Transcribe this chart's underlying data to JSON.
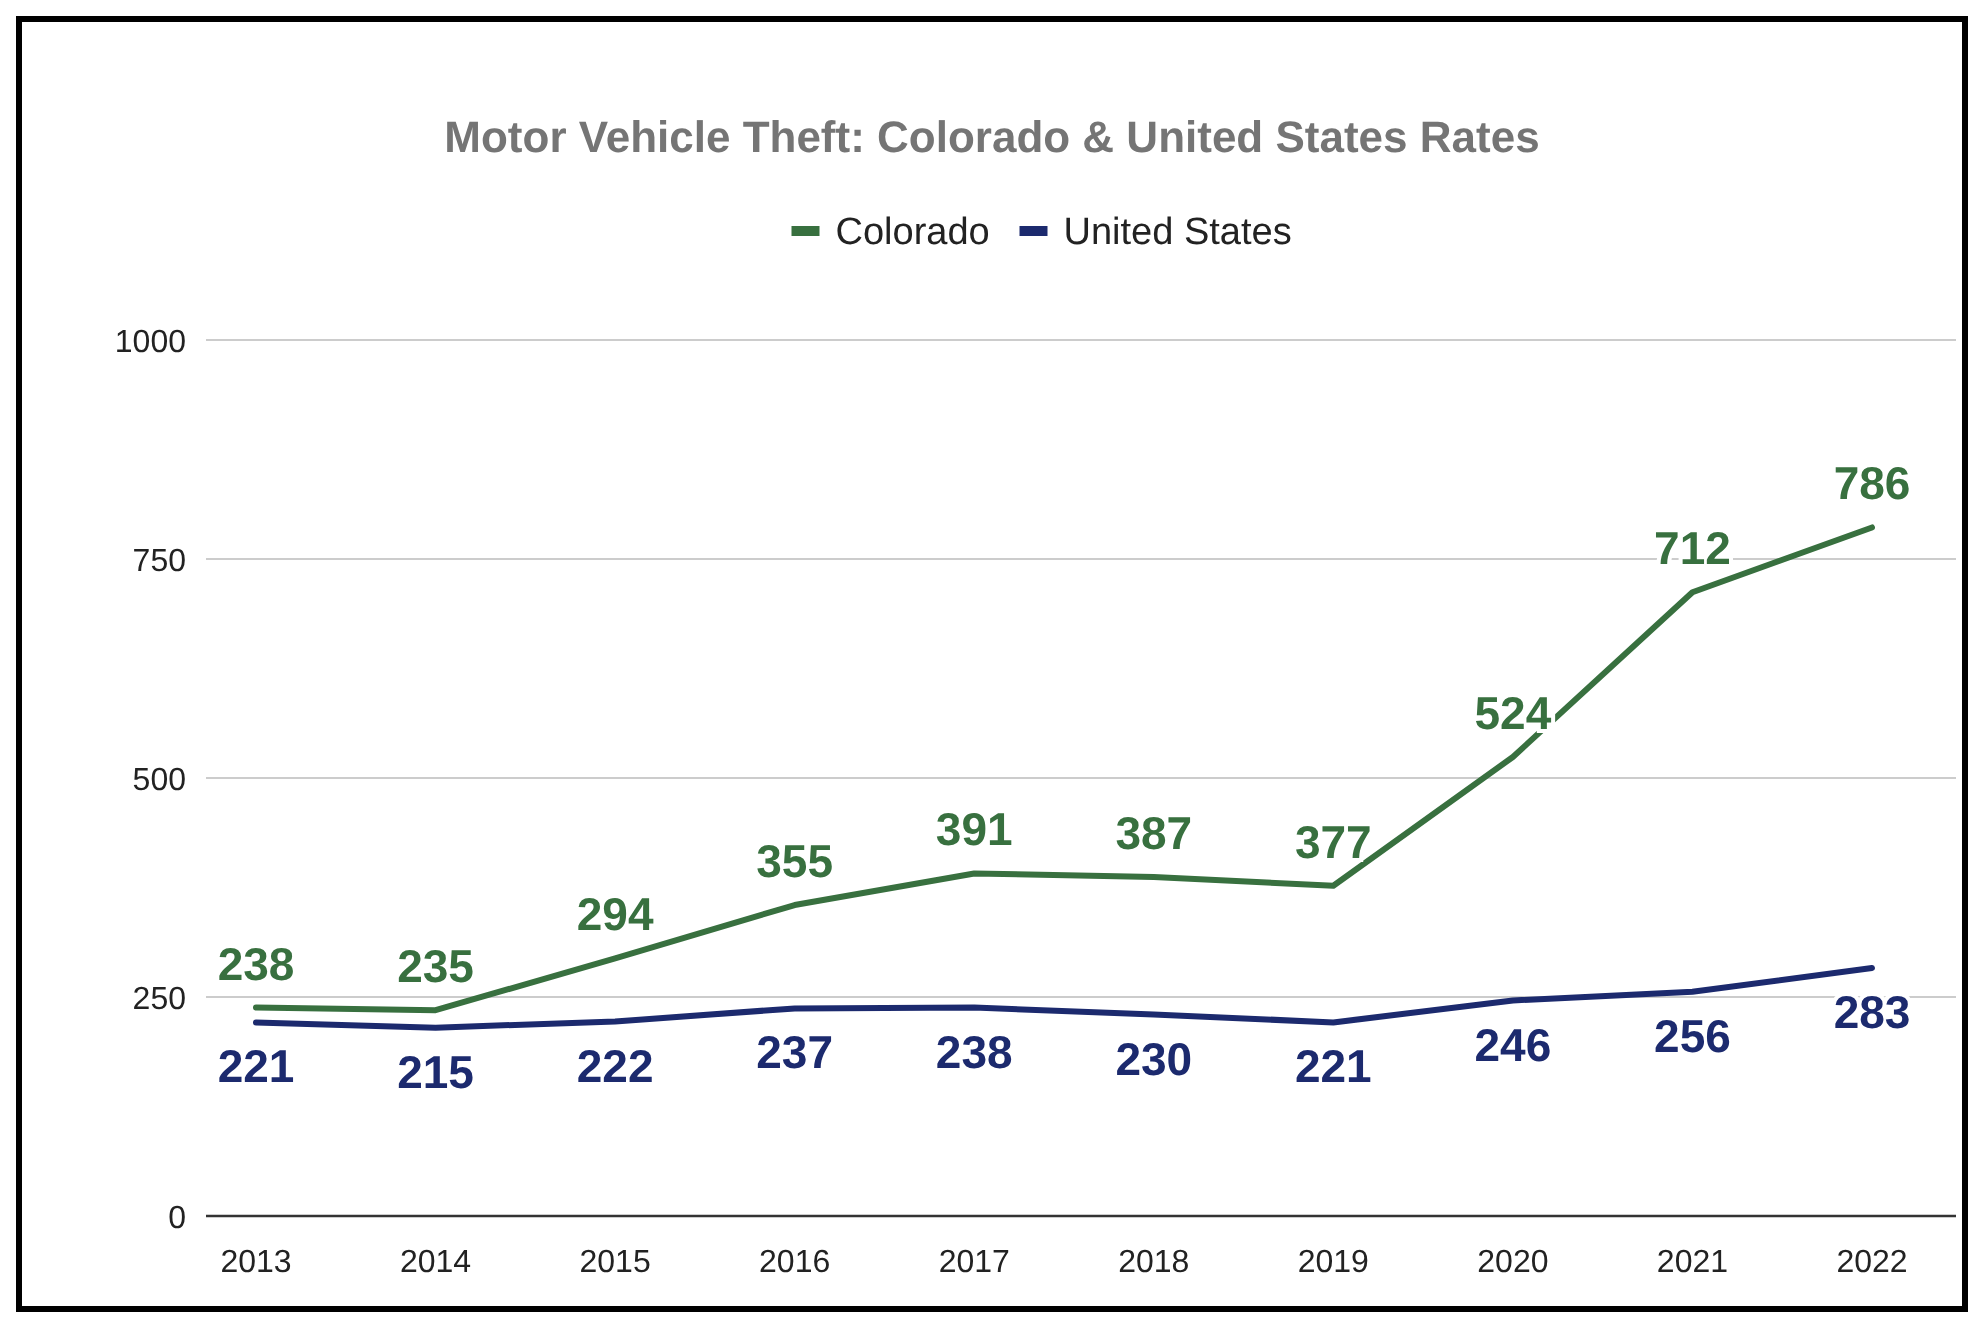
{
  "chart_data": {
    "type": "line",
    "title": "Motor Vehicle Theft: Colorado & United States Rates",
    "categories": [
      "2013",
      "2014",
      "2015",
      "2016",
      "2017",
      "2018",
      "2019",
      "2020",
      "2021",
      "2022"
    ],
    "series": [
      {
        "name": "Colorado",
        "color": "#38703f",
        "values": [
          238,
          235,
          294,
          355,
          391,
          387,
          377,
          524,
          712,
          786
        ]
      },
      {
        "name": "United States",
        "color": "#1c2a6e",
        "values": [
          221,
          215,
          222,
          237,
          238,
          230,
          221,
          246,
          256,
          283
        ]
      }
    ],
    "ylim": [
      0,
      1000
    ],
    "yticks": [
      0,
      250,
      500,
      750,
      1000
    ],
    "grid": "y",
    "legend": "top",
    "data_labels": true,
    "marker": "none",
    "line_style": "solid"
  }
}
